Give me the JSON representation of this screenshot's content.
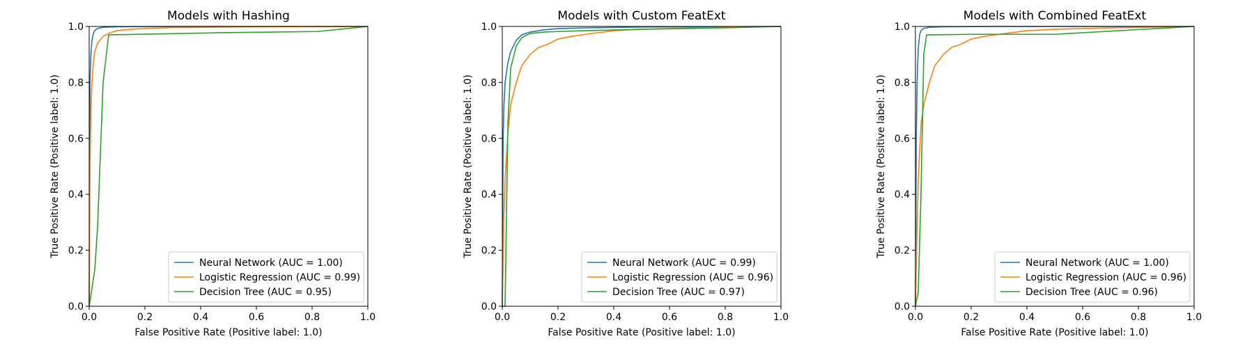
{
  "chart_data": [
    {
      "type": "line",
      "title": "Models with Hashing",
      "xlabel": "False Positive Rate (Positive label: 1.0)",
      "ylabel": "True Positive Rate (Positive label: 1.0)",
      "xlim": [
        0,
        1
      ],
      "ylim": [
        0,
        1
      ],
      "xticks": [
        "0.0",
        "0.2",
        "0.4",
        "0.6",
        "0.8",
        "1.0"
      ],
      "yticks": [
        "0.0",
        "0.2",
        "0.4",
        "0.6",
        "0.8",
        "1.0"
      ],
      "grid": false,
      "legend_position": "bottom-right",
      "series": [
        {
          "name": "Neural Network (AUC = 1.00)",
          "color": "#1f77b4",
          "x": [
            0,
            0.003,
            0.006,
            0.01,
            0.015,
            0.02,
            0.03,
            0.05,
            0.1,
            0.3,
            1.0
          ],
          "y": [
            0,
            0.8,
            0.9,
            0.95,
            0.975,
            0.985,
            0.993,
            0.997,
            0.999,
            1.0,
            1.0
          ]
        },
        {
          "name": "Logistic Regression (AUC = 0.99)",
          "color": "#ff7f0e",
          "x": [
            0,
            0.003,
            0.006,
            0.01,
            0.015,
            0.02,
            0.03,
            0.05,
            0.07,
            0.1,
            0.15,
            0.2,
            0.3,
            0.5,
            1.0
          ],
          "y": [
            0,
            0.5,
            0.7,
            0.8,
            0.87,
            0.91,
            0.94,
            0.965,
            0.975,
            0.985,
            0.99,
            0.993,
            0.996,
            0.998,
            1.0
          ]
        },
        {
          "name": "Decision Tree (AUC = 0.95)",
          "color": "#2ca02c",
          "x": [
            0,
            0.02,
            0.03,
            0.05,
            0.07,
            0.5,
            0.82,
            1.0
          ],
          "y": [
            0,
            0.13,
            0.28,
            0.8,
            0.97,
            0.978,
            0.982,
            1.0
          ]
        }
      ]
    },
    {
      "type": "line",
      "title": "Models with Custom FeatExt",
      "xlabel": "False Positive Rate (Positive label: 1.0)",
      "ylabel": "True Positive Rate (Positive label: 1.0)",
      "xlim": [
        0,
        1
      ],
      "ylim": [
        0,
        1
      ],
      "xticks": [
        "0.0",
        "0.2",
        "0.4",
        "0.6",
        "0.8",
        "1.0"
      ],
      "yticks": [
        "0.0",
        "0.2",
        "0.4",
        "0.6",
        "0.8",
        "1.0"
      ],
      "grid": false,
      "legend_position": "bottom-right",
      "series": [
        {
          "name": "Neural Network (AUC = 0.99)",
          "color": "#1f77b4",
          "x": [
            0,
            0.003,
            0.006,
            0.01,
            0.02,
            0.03,
            0.05,
            0.07,
            0.1,
            0.15,
            0.2,
            0.3,
            0.5,
            1.0
          ],
          "y": [
            0,
            0.6,
            0.72,
            0.8,
            0.87,
            0.91,
            0.95,
            0.97,
            0.98,
            0.988,
            0.992,
            0.995,
            0.998,
            1.0
          ]
        },
        {
          "name": "Logistic Regression (AUC = 0.96)",
          "color": "#ff7f0e",
          "x": [
            0,
            0.005,
            0.01,
            0.02,
            0.03,
            0.05,
            0.07,
            0.1,
            0.13,
            0.16,
            0.2,
            0.25,
            0.3,
            0.4,
            0.5,
            0.7,
            1.0
          ],
          "y": [
            0,
            0.3,
            0.45,
            0.62,
            0.72,
            0.8,
            0.86,
            0.9,
            0.925,
            0.935,
            0.955,
            0.965,
            0.972,
            0.985,
            0.99,
            0.995,
            1.0
          ]
        },
        {
          "name": "Decision Tree (AUC = 0.97)",
          "color": "#2ca02c",
          "x": [
            0,
            0.01,
            0.02,
            0.03,
            0.05,
            0.07,
            0.1,
            0.15,
            0.2,
            0.3,
            0.5,
            0.8,
            1.0
          ],
          "y": [
            0,
            0.0,
            0.65,
            0.85,
            0.93,
            0.96,
            0.975,
            0.98,
            0.982,
            0.985,
            0.99,
            0.995,
            1.0
          ]
        }
      ]
    },
    {
      "type": "line",
      "title": "Models with Combined FeatExt",
      "xlabel": "False Positive Rate (Positive label: 1.0)",
      "ylabel": "True Positive Rate (Positive label: 1.0)",
      "xlim": [
        0,
        1
      ],
      "ylim": [
        0,
        1
      ],
      "xticks": [
        "0.0",
        "0.2",
        "0.4",
        "0.6",
        "0.8",
        "1.0"
      ],
      "yticks": [
        "0.0",
        "0.2",
        "0.4",
        "0.6",
        "0.8",
        "1.0"
      ],
      "grid": false,
      "legend_position": "bottom-right",
      "series": [
        {
          "name": "Neural Network (AUC = 1.00)",
          "color": "#1f77b4",
          "x": [
            0,
            0.003,
            0.006,
            0.01,
            0.015,
            0.02,
            0.03,
            0.05,
            0.1,
            0.3,
            1.0
          ],
          "y": [
            0,
            0.6,
            0.8,
            0.92,
            0.97,
            0.985,
            0.993,
            0.997,
            0.999,
            1.0,
            1.0
          ]
        },
        {
          "name": "Logistic Regression (AUC = 0.96)",
          "color": "#ff7f0e",
          "x": [
            0,
            0.005,
            0.01,
            0.02,
            0.03,
            0.05,
            0.07,
            0.1,
            0.13,
            0.16,
            0.2,
            0.25,
            0.3,
            0.4,
            0.5,
            0.7,
            1.0
          ],
          "y": [
            0,
            0.25,
            0.45,
            0.65,
            0.72,
            0.8,
            0.86,
            0.9,
            0.925,
            0.935,
            0.955,
            0.965,
            0.972,
            0.985,
            0.99,
            0.995,
            1.0
          ]
        },
        {
          "name": "Decision Tree (AUC = 0.96)",
          "color": "#2ca02c",
          "x": [
            0,
            0.01,
            0.02,
            0.03,
            0.04,
            0.06,
            0.2,
            0.5,
            1.0
          ],
          "y": [
            0,
            0.05,
            0.4,
            0.9,
            0.97,
            0.97,
            0.972,
            0.972,
            1.0
          ]
        }
      ]
    }
  ]
}
